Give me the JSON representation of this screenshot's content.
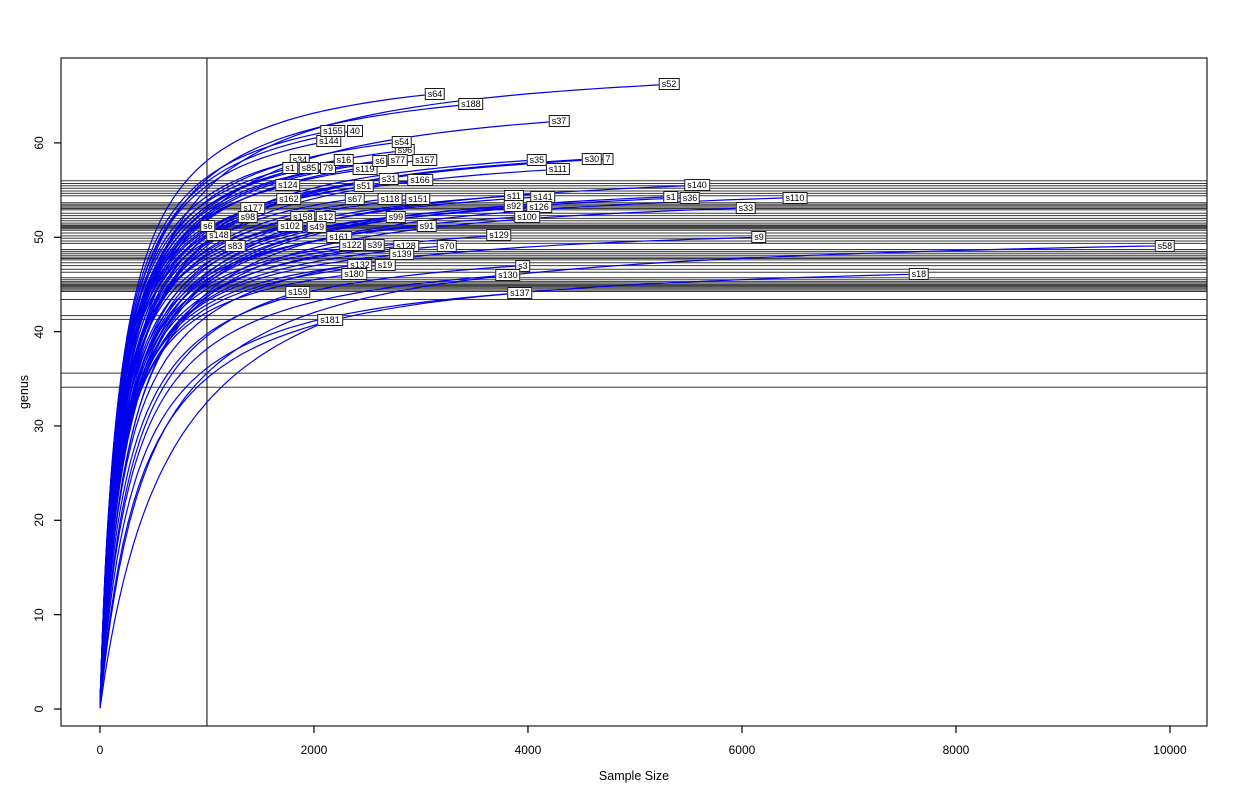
{
  "chart_data": {
    "type": "line",
    "title": "",
    "xlabel": "Sample Size",
    "ylabel": "genus",
    "x_ticks": [
      0,
      2000,
      4000,
      6000,
      8000,
      10000
    ],
    "y_ticks": [
      0,
      10,
      20,
      30,
      40,
      50,
      60
    ],
    "xlim": [
      -364,
      10346
    ],
    "ylim": [
      -1.8,
      69.0
    ],
    "grid": false,
    "legend": "none",
    "curve_color": "#0000ee",
    "ref_line_color": "#383838",
    "vline_color": "#000000",
    "vline_x": 1000,
    "hlines": [
      56.0,
      55.7,
      55.45,
      55.2,
      54.9,
      54.65,
      54.4,
      53.65,
      53.5,
      53.35,
      53.2,
      53.05,
      52.9,
      52.55,
      52.3,
      52.0,
      51.75,
      51.5,
      51.3,
      51.2,
      51.1,
      51.0,
      50.9,
      50.75,
      50.45,
      50.15,
      49.9,
      49.6,
      49.35,
      48.7,
      48.5,
      48.3,
      48.1,
      47.9,
      47.75,
      47.6,
      47.3,
      47.0,
      46.6,
      46.3,
      45.7,
      45.5,
      45.3,
      45.15,
      45.0,
      44.9,
      44.8,
      44.7,
      44.55,
      44.4,
      44.25,
      43.4,
      41.7,
      41.3,
      35.6,
      34.1
    ],
    "series_note": "rarefaction curves; each curve ends at its sample label; x=end sample size, y=end genus richness",
    "series": [
      {
        "label": "40",
        "x": 2383,
        "y": 61.3
      },
      {
        "label": "s144",
        "x": 2140,
        "y": 60.2
      },
      {
        "label": "s155",
        "x": 2177,
        "y": 61.3
      },
      {
        "label": "s96",
        "x": 2850,
        "y": 59.2
      },
      {
        "label": "s54",
        "x": 2822,
        "y": 60.1
      },
      {
        "label": "s34",
        "x": 1869,
        "y": 58.2
      },
      {
        "label": "s1",
        "x": 1776,
        "y": 57.3
      },
      {
        "label": "79",
        "x": 2131,
        "y": 57.3
      },
      {
        "label": "s85",
        "x": 1953,
        "y": 57.3
      },
      {
        "label": "s119",
        "x": 2477,
        "y": 57.2
      },
      {
        "label": "s16",
        "x": 2280,
        "y": 58.2
      },
      {
        "label": "s6",
        "x": 2617,
        "y": 58.1
      },
      {
        "label": "s77",
        "x": 2785,
        "y": 58.2
      },
      {
        "label": "s157",
        "x": 3037,
        "y": 58.2
      },
      {
        "label": "7",
        "x": 4748,
        "y": 58.3
      },
      {
        "label": "s30",
        "x": 4598,
        "y": 58.3
      },
      {
        "label": "s111",
        "x": 4280,
        "y": 57.2
      },
      {
        "label": "s35",
        "x": 4084,
        "y": 58.2
      },
      {
        "label": "s37",
        "x": 4290,
        "y": 62.3,
        "k": 260
      },
      {
        "label": "s188",
        "x": 3467,
        "y": 64.1,
        "k": 210
      },
      {
        "label": "s64",
        "x": 3131,
        "y": 65.2,
        "k": 190
      },
      {
        "label": "s52",
        "x": 5318,
        "y": 66.2,
        "k": 260
      },
      {
        "label": "s31",
        "x": 2701,
        "y": 56.2
      },
      {
        "label": "s166",
        "x": 2991,
        "y": 56.1
      },
      {
        "label": "s124",
        "x": 1757,
        "y": 55.5
      },
      {
        "label": "s51",
        "x": 2467,
        "y": 55.4
      },
      {
        "label": "s162",
        "x": 1766,
        "y": 54.1
      },
      {
        "label": "s67",
        "x": 2383,
        "y": 54.1
      },
      {
        "label": "s118",
        "x": 2710,
        "y": 54.1
      },
      {
        "label": "s151",
        "x": 2972,
        "y": 54.1
      },
      {
        "label": "s11",
        "x": 3869,
        "y": 54.4
      },
      {
        "label": "s141",
        "x": 4140,
        "y": 54.3
      },
      {
        "label": "s1",
        "x": 5336,
        "y": 54.3
      },
      {
        "label": "s36",
        "x": 5514,
        "y": 54.2
      },
      {
        "label": "s140",
        "x": 5580,
        "y": 55.5
      },
      {
        "label": "s110",
        "x": 6495,
        "y": 54.2
      },
      {
        "label": "s177",
        "x": 1430,
        "y": 53.1
      },
      {
        "label": "s92",
        "x": 3869,
        "y": 53.3
      },
      {
        "label": "s126",
        "x": 4103,
        "y": 53.2
      },
      {
        "label": "s33",
        "x": 6037,
        "y": 53.1
      },
      {
        "label": "s98",
        "x": 1383,
        "y": 52.2
      },
      {
        "label": "s158",
        "x": 1897,
        "y": 52.1
      },
      {
        "label": "s12",
        "x": 2112,
        "y": 52.1
      },
      {
        "label": "s99",
        "x": 2766,
        "y": 52.2
      },
      {
        "label": "s100",
        "x": 3991,
        "y": 52.2
      },
      {
        "label": "s148",
        "x": 1112,
        "y": 50.2
      },
      {
        "label": "s6",
        "x": 1009,
        "y": 51.2
      },
      {
        "label": "s102",
        "x": 1776,
        "y": 51.2
      },
      {
        "label": "s49",
        "x": 2028,
        "y": 51.1
      },
      {
        "label": "s91",
        "x": 3056,
        "y": 51.2
      },
      {
        "label": "s161",
        "x": 2234,
        "y": 50.0
      },
      {
        "label": "s9",
        "x": 6159,
        "y": 50.0,
        "k": 250
      },
      {
        "label": "s129",
        "x": 3729,
        "y": 50.2
      },
      {
        "label": "s83",
        "x": 1262,
        "y": 49.1
      },
      {
        "label": "s122",
        "x": 2355,
        "y": 49.2
      },
      {
        "label": "s39",
        "x": 2570,
        "y": 49.2
      },
      {
        "label": "s128",
        "x": 2860,
        "y": 49.1
      },
      {
        "label": "s70",
        "x": 3243,
        "y": 49.1
      },
      {
        "label": "s58",
        "x": 9953,
        "y": 49.1,
        "k": 440
      },
      {
        "label": "s139",
        "x": 2822,
        "y": 48.2
      },
      {
        "label": "s132",
        "x": 2430,
        "y": 47.1
      },
      {
        "label": "s19",
        "x": 2664,
        "y": 47.1
      },
      {
        "label": "s3",
        "x": 3953,
        "y": 47.0,
        "k": 260
      },
      {
        "label": "s180",
        "x": 2374,
        "y": 46.1
      },
      {
        "label": "s130",
        "x": 3813,
        "y": 46.0,
        "k": 300
      },
      {
        "label": "s18",
        "x": 7654,
        "y": 46.1,
        "k": 380
      },
      {
        "label": "s159",
        "x": 1850,
        "y": 44.2,
        "k": 300
      },
      {
        "label": "s137",
        "x": 3925,
        "y": 44.1,
        "k": 320
      },
      {
        "label": "s181",
        "x": 2150,
        "y": 41.2,
        "k": 650
      }
    ]
  }
}
